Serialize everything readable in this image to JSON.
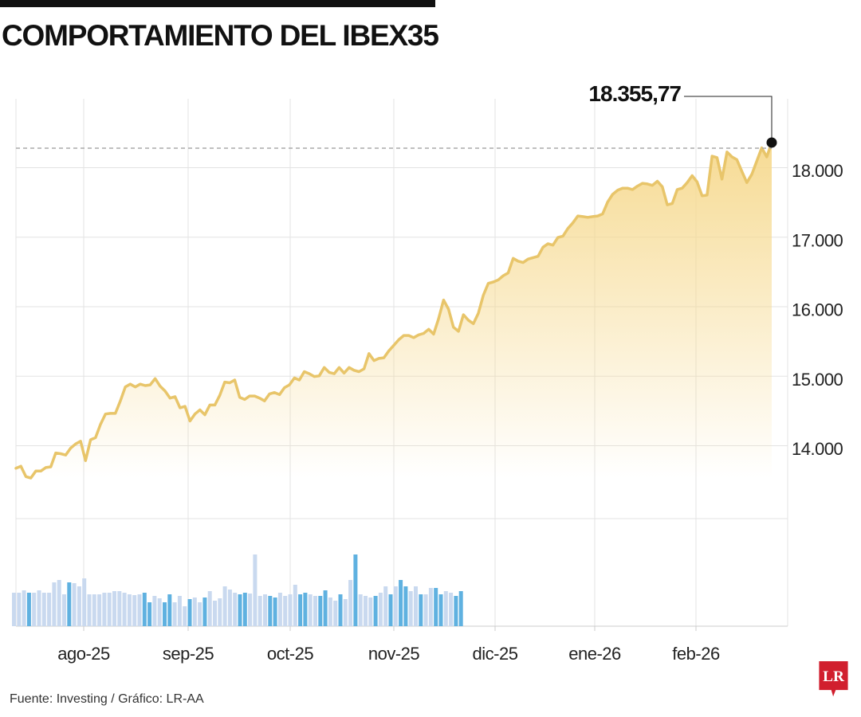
{
  "title": "COMPORTAMIENTO DEL IBEX35",
  "source": "Fuente: Investing / Gráfico: LR-AA",
  "logo_text": "LR",
  "colors": {
    "line": "#e8c56a",
    "fill_top": "#f6d98e",
    "grid": "#e3e3e3",
    "ref_line": "#aaaaaa",
    "volume_dark": "#5fb1e0",
    "volume_light": "#c9d9ef",
    "logo": "#d11f2e"
  },
  "chart_data": {
    "type": "line",
    "title": "COMPORTAMIENTO DEL IBEX35",
    "x_tick_labels": [
      "ago-25",
      "sep-25",
      "oct-25",
      "nov-25",
      "dic-25",
      "ene-26",
      "feb-26"
    ],
    "y_ticks": [
      14000,
      15000,
      16000,
      17000,
      18000
    ],
    "y_tick_labels": [
      "14.000",
      "15.000",
      "16.000",
      "17.000",
      "18.000"
    ],
    "ylim": [
      13350,
      18800
    ],
    "grid": true,
    "annotation": {
      "label": "18.355,77",
      "value": 18355.77
    },
    "series": [
      {
        "values": [
          13670,
          13700,
          13550,
          13530,
          13630,
          13630,
          13680,
          13690,
          13890,
          13880,
          13860,
          13960,
          14020,
          14060,
          13780,
          14080,
          14110,
          14300,
          14450,
          14460,
          14460,
          14640,
          14840,
          14880,
          14840,
          14880,
          14860,
          14870,
          14960,
          14850,
          14780,
          14680,
          14700,
          14540,
          14560,
          14350,
          14450,
          14510,
          14440,
          14580,
          14580,
          14720,
          14910,
          14900,
          14940,
          14690,
          14660,
          14710,
          14710,
          14680,
          14640,
          14740,
          14760,
          14730,
          14830,
          14870,
          14970,
          14940,
          15060,
          15030,
          14990,
          15000,
          15120,
          15050,
          15030,
          15120,
          15040,
          15120,
          15080,
          15060,
          15100,
          15320,
          15220,
          15250,
          15260,
          15360,
          15440,
          15520,
          15580,
          15580,
          15550,
          15590,
          15610,
          15670,
          15600,
          15820,
          16090,
          15960,
          15700,
          15640,
          15880,
          15800,
          15750,
          15900,
          16160,
          16330,
          16350,
          16380,
          16440,
          16480,
          16690,
          16650,
          16630,
          16680,
          16700,
          16720,
          16850,
          16900,
          16880,
          16990,
          17010,
          17120,
          17200,
          17300,
          17290,
          17280,
          17290,
          17300,
          17330,
          17500,
          17610,
          17670,
          17700,
          17700,
          17680,
          17730,
          17770,
          17760,
          17740,
          17800,
          17720,
          17460,
          17480,
          17680,
          17700,
          17780,
          17880,
          17790,
          17590,
          17600,
          18160,
          18140,
          17830,
          18220,
          18150,
          18110,
          17940,
          17780,
          17900,
          18090,
          18280,
          18150,
          18355.77
        ]
      }
    ]
  },
  "volume": {
    "values": [
      42,
      42,
      45,
      42,
      42,
      45,
      42,
      42,
      55,
      58,
      40,
      55,
      54,
      50,
      60,
      40,
      40,
      40,
      42,
      42,
      44,
      44,
      42,
      40,
      39,
      40,
      42,
      30,
      38,
      35,
      30,
      40,
      30,
      38,
      25,
      34,
      36,
      30,
      36,
      44,
      32,
      35,
      50,
      46,
      42,
      40,
      42,
      41,
      90,
      38,
      40,
      38,
      36,
      42,
      38,
      40,
      52,
      40,
      42,
      40,
      38,
      38,
      45,
      36,
      32,
      40,
      34,
      58,
      90,
      40,
      38,
      36,
      38,
      42,
      50,
      40,
      50,
      58,
      50,
      44,
      50,
      40,
      40,
      48,
      48,
      40,
      44,
      42,
      38,
      44
    ],
    "highlight": [
      0,
      0,
      0,
      1,
      0,
      0,
      0,
      0,
      0,
      0,
      0,
      1,
      0,
      0,
      0,
      0,
      0,
      0,
      0,
      0,
      0,
      0,
      0,
      0,
      0,
      0,
      1,
      1,
      0,
      0,
      1,
      1,
      0,
      0,
      0,
      1,
      0,
      0,
      1,
      0,
      0,
      0,
      0,
      0,
      0,
      1,
      1,
      0,
      0,
      0,
      0,
      1,
      1,
      0,
      0,
      0,
      0,
      1,
      1,
      0,
      0,
      1,
      1,
      0,
      0,
      1,
      0,
      0,
      1,
      0,
      0,
      0,
      1,
      0,
      0,
      1,
      0,
      1,
      1,
      0,
      0,
      1,
      0,
      0,
      1,
      1,
      0,
      0,
      1,
      1
    ]
  }
}
